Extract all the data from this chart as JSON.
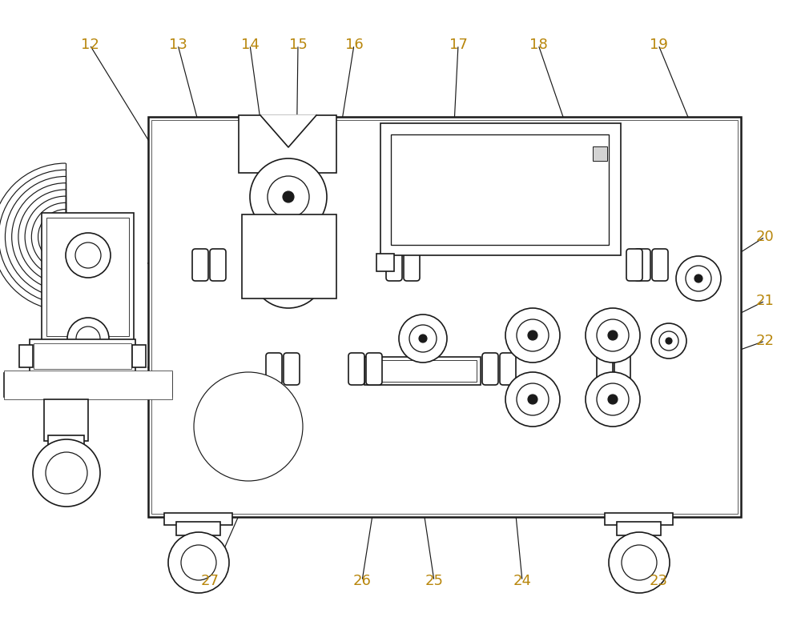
{
  "bg_color": "#ffffff",
  "line_color": "#1a1a1a",
  "label_color": "#b8860b",
  "fig_width": 10.0,
  "fig_height": 7.81,
  "main_body": [
    1.85,
    1.35,
    7.4,
    5.0
  ],
  "annotations": [
    [
      "12",
      1.12,
      7.25,
      1.95,
      5.9
    ],
    [
      "13",
      2.22,
      7.25,
      2.55,
      6.0
    ],
    [
      "14",
      3.12,
      7.25,
      3.3,
      5.95
    ],
    [
      "15",
      3.72,
      7.25,
      3.7,
      5.7
    ],
    [
      "16",
      4.42,
      7.25,
      4.15,
      5.55
    ],
    [
      "17",
      5.72,
      7.25,
      5.65,
      5.85
    ],
    [
      "18",
      6.72,
      7.25,
      7.15,
      6.0
    ],
    [
      "19",
      8.22,
      7.25,
      8.65,
      6.2
    ],
    [
      "20",
      9.55,
      4.85,
      8.68,
      4.3
    ],
    [
      "21",
      9.55,
      4.05,
      8.55,
      3.55
    ],
    [
      "22",
      9.55,
      3.55,
      8.15,
      3.05
    ],
    [
      "23",
      8.22,
      0.55,
      8.05,
      1.25
    ],
    [
      "24",
      6.52,
      0.55,
      6.35,
      2.3
    ],
    [
      "25",
      5.42,
      0.55,
      5.15,
      2.35
    ],
    [
      "26",
      4.52,
      0.55,
      4.82,
      2.45
    ],
    [
      "27",
      2.62,
      0.55,
      3.15,
      1.75
    ]
  ]
}
